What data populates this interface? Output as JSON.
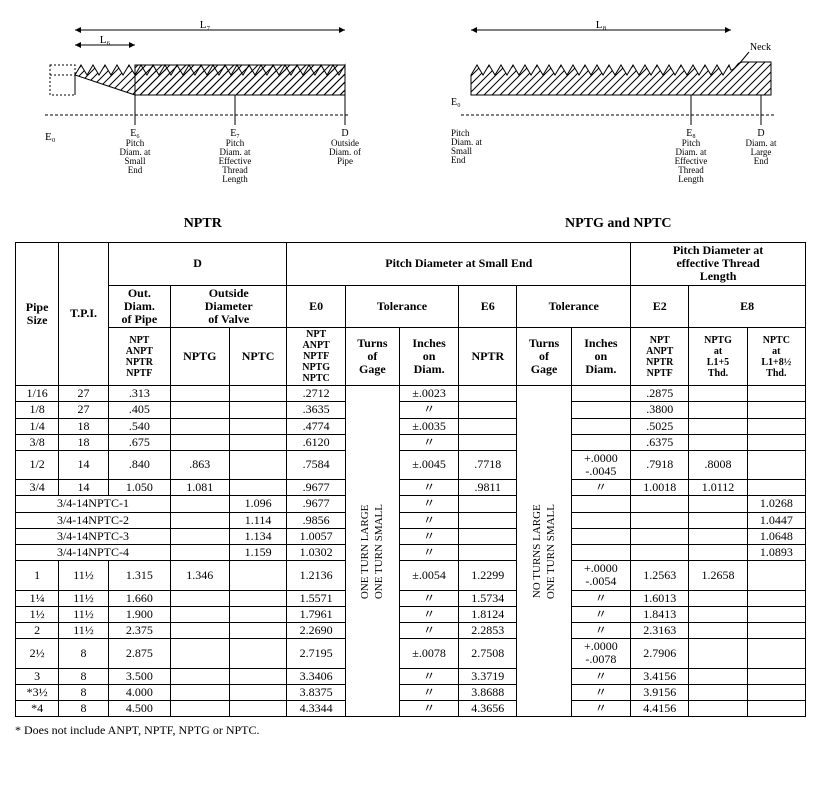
{
  "diagrams": {
    "left": {
      "title": "NPTR",
      "labels": {
        "L7": "L₇",
        "L6": "L₆",
        "E0": "E₀",
        "E6": "E₆",
        "E7": "E₇",
        "D": "D",
        "E6_text": "Pitch\nDiam. at\nSmall\nEnd",
        "E7_text": "Pitch\nDiam. at\nEffective\nThread\nLength",
        "D_text": "Outside\nDiam. of\nPipe"
      }
    },
    "right": {
      "title": "NPTG and NPTC",
      "labels": {
        "L8": "L₈",
        "E0": "E₀",
        "E8": "E₈",
        "D": "D",
        "Neck": "Neck",
        "E0_text": "Pitch\nDiam. at\nSmall\nEnd",
        "E8_text": "Pitch\nDiam. at\nEffective\nThread\nLength",
        "D_text": "Diam. at\nLarge\nEnd"
      }
    }
  },
  "table": {
    "headers": {
      "pipe_size": "Pipe\nSize",
      "tpi": "T.P.I.",
      "D": "D",
      "D_out": "Out.\nDiam.\nof Pipe",
      "D_valve": "Outside\nDiameter\nof Valve",
      "D_out_sub": "NPT\nANPT\nNPTR\nNPTF",
      "NPTG": "NPTG",
      "NPTC": "NPTC",
      "pd_small": "Pitch Diameter at Small End",
      "E0": "E0",
      "E0_tol": "Tolerance",
      "E6": "E6",
      "E6_tol": "Tolerance",
      "E0_sub": "NPT\nANPT\nNPTF\nNPTG\nNPTC",
      "turns": "Turns\nof\nGage",
      "inches": "Inches\non\nDiam.",
      "NPTR": "NPTR",
      "pd_eff": "Pitch Diameter at\neffective Thread\nLength",
      "E2": "E2",
      "E8": "E8",
      "E2_sub": "NPT\nANPT\nNPTR\nNPTF",
      "NPTG8": "NPTG\nat\nL1+5\nThd.",
      "NPTC8": "NPTC\nat\nL1+8½\nThd."
    },
    "vert": {
      "turns_large": "ONE TURN LARGE",
      "turns_small": "ONE TURN SMALL",
      "no_turns_large": "NO TURNS LARGE",
      "one_turn_small": "ONE TURN SMALL"
    },
    "tol": {
      "t1": "+.0000\n-.0045",
      "t2": "+.0000\n-.0054",
      "t3": "+.0000\n-.0078"
    },
    "rows": [
      {
        "ps": "1/16",
        "tpi": "27",
        "od": ".313",
        "nptg": "",
        "nptc": "",
        "e0": ".2712",
        "id": "±.0023",
        "nptr": "",
        "e2": ".2875",
        "nptg8": "",
        "nptc8": ""
      },
      {
        "ps": "1/8",
        "tpi": "27",
        "od": ".405",
        "nptg": "",
        "nptc": "",
        "e0": ".3635",
        "id": "〃",
        "nptr": "",
        "e2": ".3800",
        "nptg8": "",
        "nptc8": ""
      },
      {
        "ps": "1/4",
        "tpi": "18",
        "od": ".540",
        "nptg": "",
        "nptc": "",
        "e0": ".4774",
        "id": "±.0035",
        "nptr": "",
        "e2": ".5025",
        "nptg8": "",
        "nptc8": ""
      },
      {
        "ps": "3/8",
        "tpi": "18",
        "od": ".675",
        "nptg": "",
        "nptc": "",
        "e0": ".6120",
        "id": "〃",
        "nptr": "",
        "e2": ".6375",
        "nptg8": "",
        "nptc8": ""
      },
      {
        "ps": "1/2",
        "tpi": "14",
        "od": ".840",
        "nptg": ".863",
        "nptc": "",
        "e0": ".7584",
        "id": "±.0045",
        "nptr": ".7718",
        "tol": "t1",
        "e2": ".7918",
        "nptg8": ".8008",
        "nptc8": ""
      },
      {
        "ps": "3/4",
        "tpi": "14",
        "od": "1.050",
        "nptg": "1.081",
        "nptc": "",
        "e0": ".9677",
        "id": "〃",
        "nptr": ".9811",
        "tol": "〃",
        "e2": "1.0018",
        "nptg8": "1.0112",
        "nptc8": ""
      },
      {
        "ps": "3/4-14NPTC-1",
        "span": true,
        "nptc": "1.096",
        "e0": ".9677",
        "id": "〃",
        "nptc8": "1.0268"
      },
      {
        "ps": "3/4-14NPTC-2",
        "span": true,
        "nptc": "1.114",
        "e0": ".9856",
        "id": "〃",
        "nptc8": "1.0447"
      },
      {
        "ps": "3/4-14NPTC-3",
        "span": true,
        "nptc": "1.134",
        "e0": "1.0057",
        "id": "〃",
        "nptc8": "1.0648"
      },
      {
        "ps": "3/4-14NPTC-4",
        "span": true,
        "nptc": "1.159",
        "e0": "1.0302",
        "id": "〃",
        "nptc8": "1.0893"
      },
      {
        "ps": "1",
        "tpi": "11½",
        "od": "1.315",
        "nptg": "1.346",
        "nptc": "",
        "e0": "1.2136",
        "id": "±.0054",
        "nptr": "1.2299",
        "tol": "t2",
        "e2": "1.2563",
        "nptg8": "1.2658",
        "nptc8": ""
      },
      {
        "ps": "1¼",
        "tpi": "11½",
        "od": "1.660",
        "nptg": "",
        "nptc": "",
        "e0": "1.5571",
        "id": "〃",
        "nptr": "1.5734",
        "tol": "〃",
        "e2": "1.6013",
        "nptg8": "",
        "nptc8": ""
      },
      {
        "ps": "1½",
        "tpi": "11½",
        "od": "1.900",
        "nptg": "",
        "nptc": "",
        "e0": "1.7961",
        "id": "〃",
        "nptr": "1.8124",
        "tol": "〃",
        "e2": "1.8413",
        "nptg8": "",
        "nptc8": ""
      },
      {
        "ps": "2",
        "tpi": "11½",
        "od": "2.375",
        "nptg": "",
        "nptc": "",
        "e0": "2.2690",
        "id": "〃",
        "nptr": "2.2853",
        "tol": "〃",
        "e2": "2.3163",
        "nptg8": "",
        "nptc8": ""
      },
      {
        "ps": "2½",
        "tpi": "8",
        "od": "2.875",
        "nptg": "",
        "nptc": "",
        "e0": "2.7195",
        "id": "±.0078",
        "nptr": "2.7508",
        "tol": "t3",
        "e2": "2.7906",
        "nptg8": "",
        "nptc8": ""
      },
      {
        "ps": "3",
        "tpi": "8",
        "od": "3.500",
        "nptg": "",
        "nptc": "",
        "e0": "3.3406",
        "id": "〃",
        "nptr": "3.3719",
        "tol": "〃",
        "e2": "3.4156",
        "nptg8": "",
        "nptc8": ""
      },
      {
        "ps": "*3½",
        "tpi": "8",
        "od": "4.000",
        "nptg": "",
        "nptc": "",
        "e0": "3.8375",
        "id": "〃",
        "nptr": "3.8688",
        "tol": "〃",
        "e2": "3.9156",
        "nptg8": "",
        "nptc8": ""
      },
      {
        "ps": "*4",
        "tpi": "8",
        "od": "4.500",
        "nptg": "",
        "nptc": "",
        "e0": "4.3344",
        "id": "〃",
        "nptr": "4.3656",
        "tol": "〃",
        "e2": "4.4156",
        "nptg8": "",
        "nptc8": ""
      }
    ]
  },
  "footnote": "* Does not include ANPT, NPTF, NPTG or NPTC.",
  "style": {
    "border": "#000",
    "font": "serif",
    "bg": "#fff",
    "hatch": "#000"
  }
}
